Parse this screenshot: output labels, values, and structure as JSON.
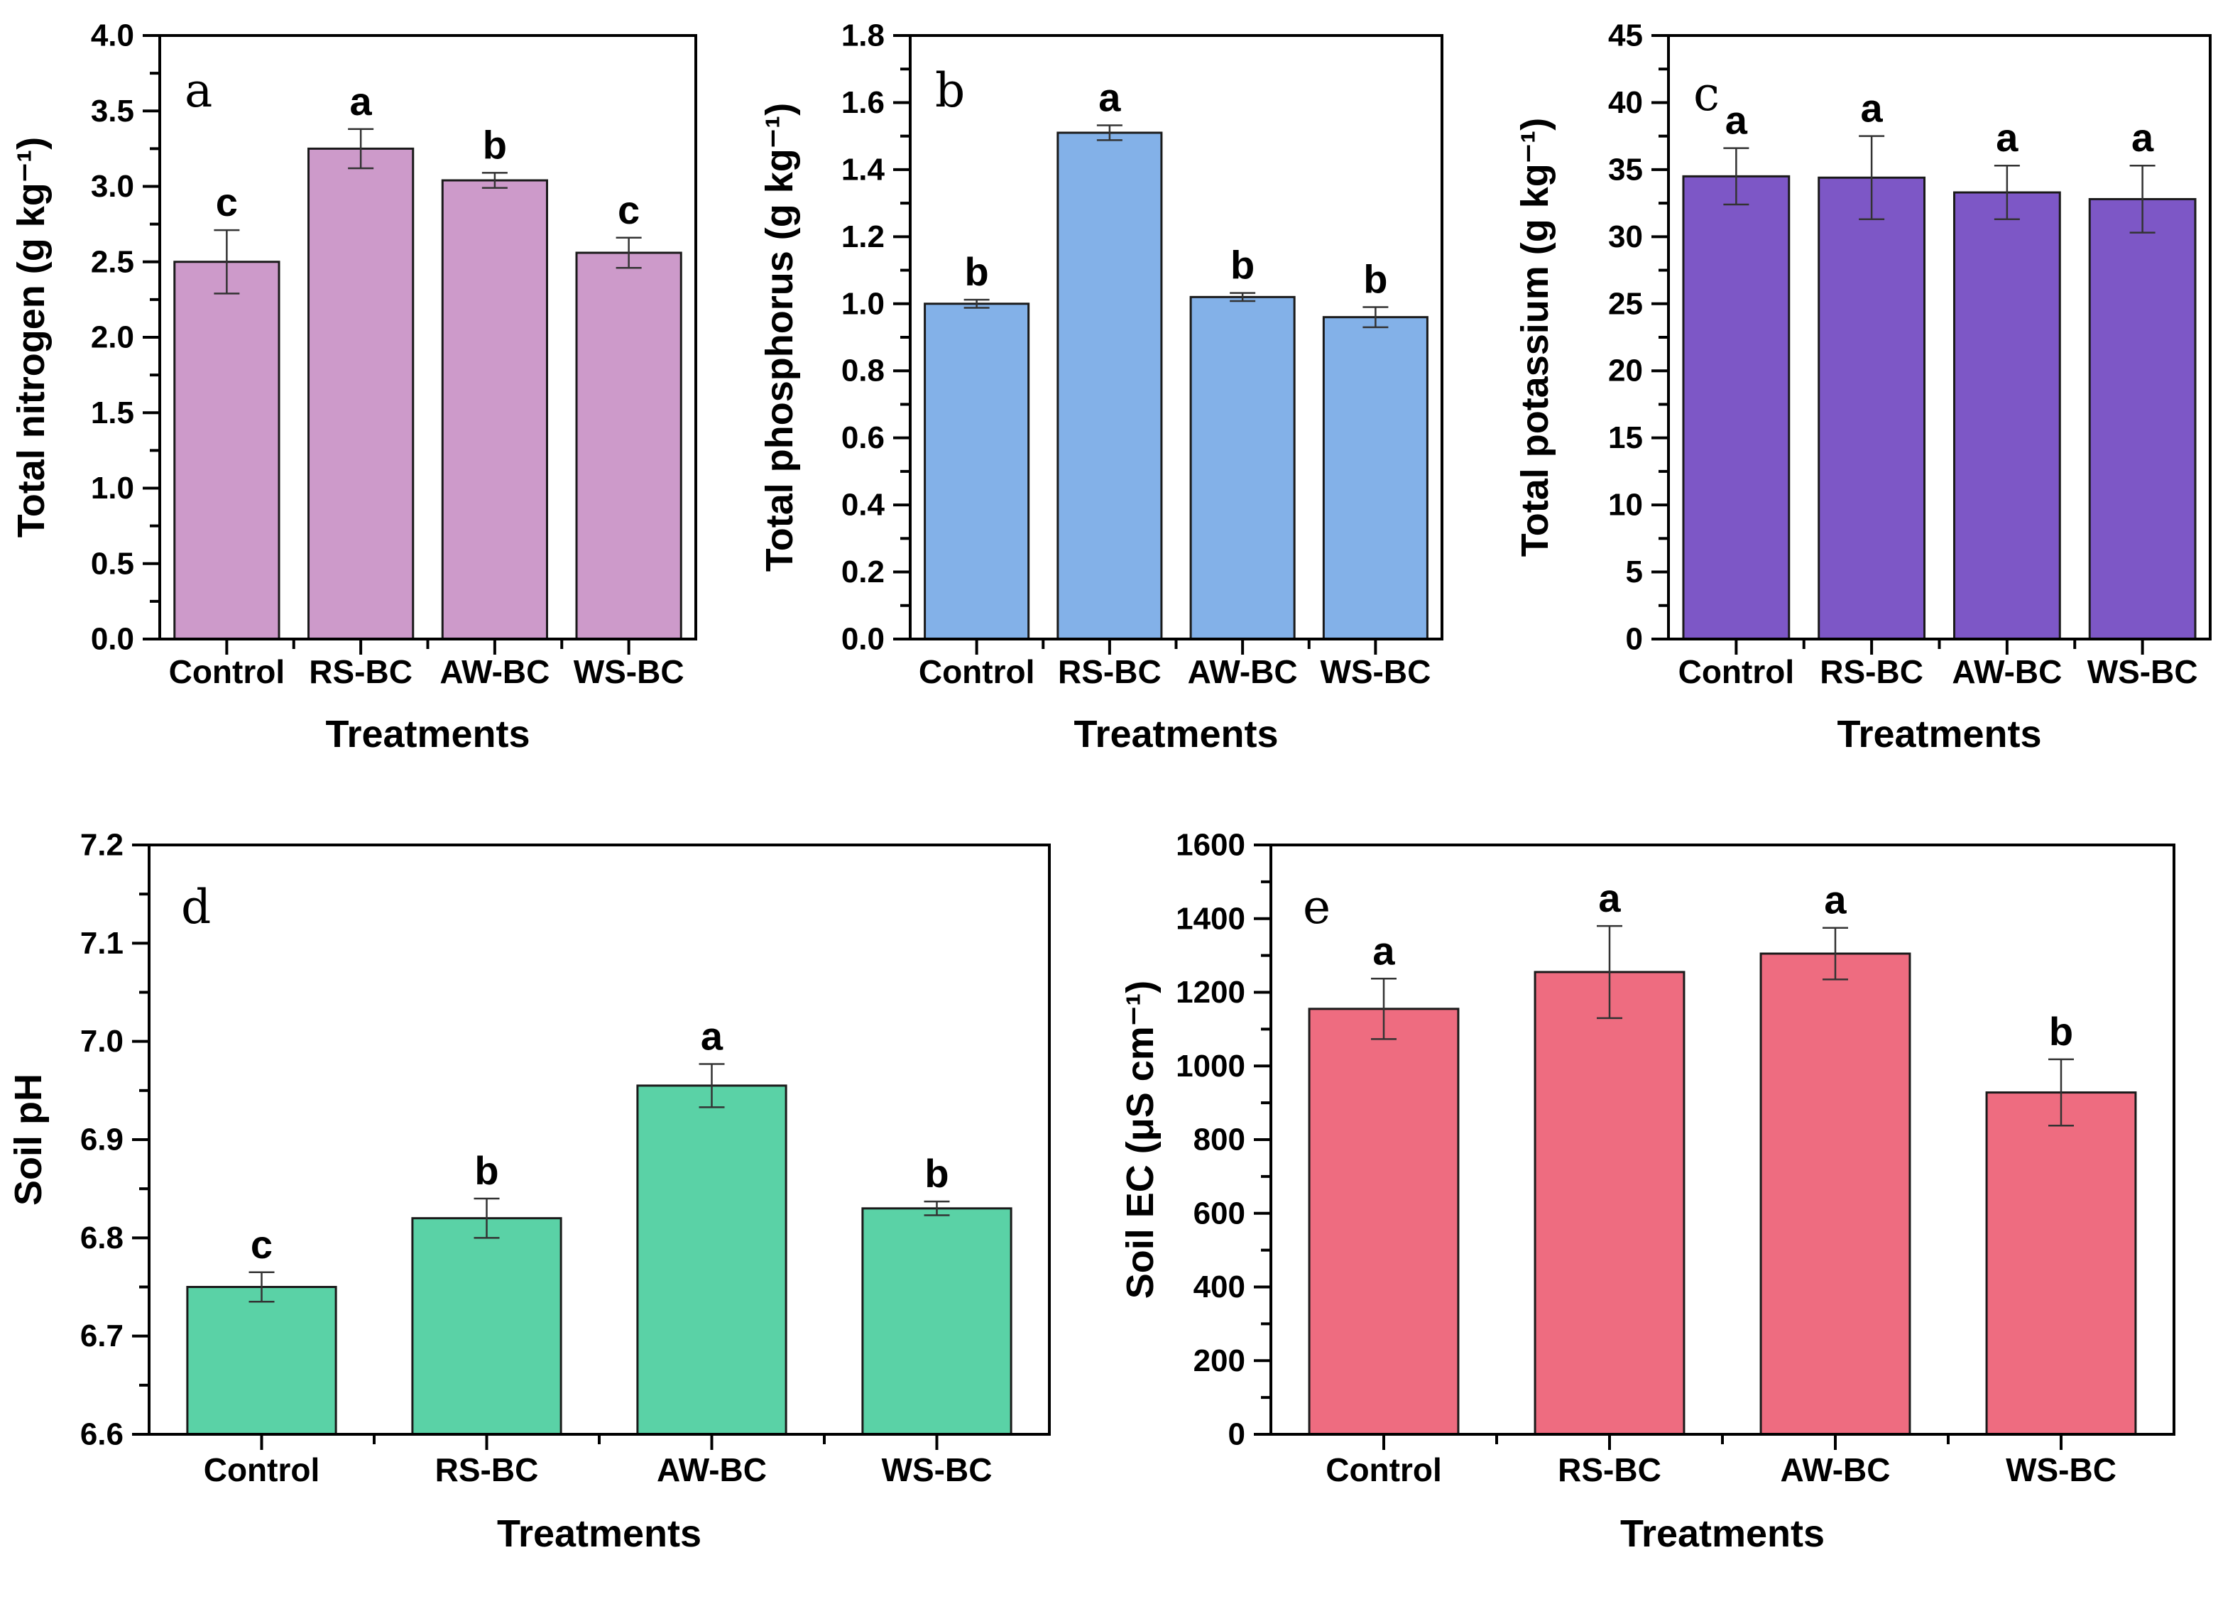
{
  "figure": {
    "background": "#ffffff",
    "axis_color": "#000000",
    "bar_edge_color": "#1a1a1a",
    "error_bar_color": "#333333"
  },
  "chart_data": [
    {
      "id": "a",
      "type": "bar",
      "panel_label": "a",
      "title": "",
      "ylabel": "Total nitrogen (g kg⁻¹)",
      "xlabel": "Treatments",
      "categories": [
        "Control",
        "RS-BC",
        "AW-BC",
        "WS-BC"
      ],
      "values": [
        2.5,
        3.25,
        3.04,
        2.56
      ],
      "errors": [
        0.21,
        0.13,
        0.05,
        0.1
      ],
      "sig_letters": [
        "c",
        "a",
        "b",
        "c"
      ],
      "ylim": [
        0.0,
        4.0
      ],
      "ytick_major": 0.5,
      "ytick_minor": 0.25,
      "y_decimals": 1,
      "bar_color": "#cd9aca",
      "grid": false,
      "legend": null
    },
    {
      "id": "b",
      "type": "bar",
      "panel_label": "b",
      "title": "",
      "ylabel": "Total phosphorus (g kg⁻¹)",
      "xlabel": "Treatments",
      "categories": [
        "Control",
        "RS-BC",
        "AW-BC",
        "WS-BC"
      ],
      "values": [
        1.0,
        1.51,
        1.02,
        0.96
      ],
      "errors": [
        0.012,
        0.022,
        0.012,
        0.03
      ],
      "sig_letters": [
        "b",
        "a",
        "b",
        "b"
      ],
      "ylim": [
        0.0,
        1.8
      ],
      "ytick_major": 0.2,
      "ytick_minor": 0.1,
      "y_decimals": 1,
      "bar_color": "#83b1e8",
      "grid": false,
      "legend": null
    },
    {
      "id": "c",
      "type": "bar",
      "panel_label": "c",
      "title": "",
      "ylabel": "Total potassium (g kg⁻¹)",
      "xlabel": "Treatments",
      "categories": [
        "Control",
        "RS-BC",
        "AW-BC",
        "WS-BC"
      ],
      "values": [
        34.5,
        34.4,
        33.3,
        32.8
      ],
      "errors": [
        2.1,
        3.1,
        2.0,
        2.5
      ],
      "sig_letters": [
        "a",
        "a",
        "a",
        "a"
      ],
      "ylim": [
        0,
        45
      ],
      "ytick_major": 5,
      "ytick_minor": 2.5,
      "y_decimals": 0,
      "bar_color": "#7d57c6",
      "grid": false,
      "legend": null
    },
    {
      "id": "d",
      "type": "bar",
      "panel_label": "d",
      "title": "",
      "ylabel": "Soil pH",
      "xlabel": "Treatments",
      "categories": [
        "Control",
        "RS-BC",
        "AW-BC",
        "WS-BC"
      ],
      "values": [
        6.75,
        6.82,
        6.955,
        6.83
      ],
      "errors": [
        0.015,
        0.02,
        0.022,
        0.007
      ],
      "sig_letters": [
        "c",
        "b",
        "a",
        "b"
      ],
      "ylim": [
        6.6,
        7.2
      ],
      "ytick_major": 0.1,
      "ytick_minor": 0.05,
      "y_decimals": 1,
      "bar_color": "#5ad2a6",
      "grid": false,
      "legend": null
    },
    {
      "id": "e",
      "type": "bar",
      "panel_label": "e",
      "title": "",
      "ylabel": "Soil EC (μS cm⁻¹)",
      "xlabel": "Treatments",
      "categories": [
        "Control",
        "RS-BC",
        "AW-BC",
        "WS-BC"
      ],
      "values": [
        1155,
        1255,
        1305,
        928
      ],
      "errors": [
        82,
        125,
        70,
        90
      ],
      "sig_letters": [
        "a",
        "a",
        "a",
        "b"
      ],
      "ylim": [
        0,
        1600
      ],
      "ytick_major": 200,
      "ytick_minor": 100,
      "y_decimals": 0,
      "bar_color": "#ee6c80",
      "grid": false,
      "legend": null
    }
  ]
}
